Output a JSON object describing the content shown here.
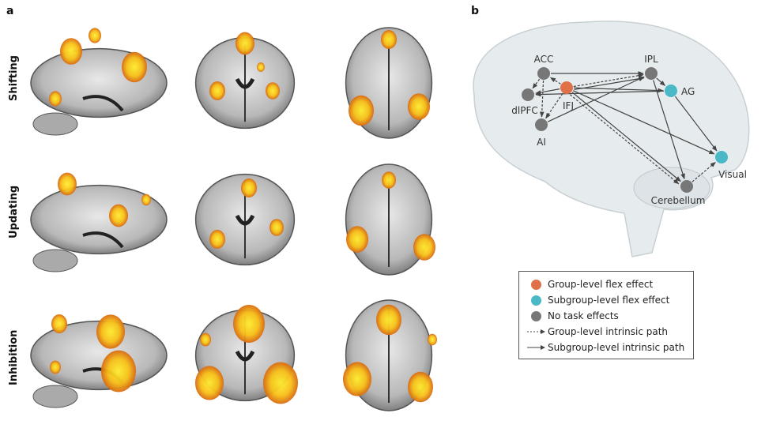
{
  "panels": {
    "a": "a",
    "b": "b"
  },
  "rows": [
    "Shifting",
    "Updating",
    "Inhibition"
  ],
  "colors": {
    "group": "#e07048",
    "subgroup": "#4bb8c8",
    "none": "#777777",
    "activation_high": "#ffe828",
    "activation_low": "#e07a10"
  },
  "diagram": {
    "nodes": [
      {
        "id": "ACC",
        "label": "ACC",
        "type": "none"
      },
      {
        "id": "IFJ",
        "label": "IFJ",
        "type": "group"
      },
      {
        "id": "dlPFC",
        "label": "dlPFC",
        "type": "none"
      },
      {
        "id": "AI",
        "label": "AI",
        "type": "none"
      },
      {
        "id": "IPL",
        "label": "IPL",
        "type": "none"
      },
      {
        "id": "AG",
        "label": "AG",
        "type": "subgroup"
      },
      {
        "id": "Visual",
        "label": "Visual",
        "type": "subgroup"
      },
      {
        "id": "Cerebellum",
        "label": "Cerebellum",
        "type": "none"
      }
    ],
    "edges": [
      {
        "from": "ACC",
        "to": "IPL",
        "style": "solid"
      },
      {
        "from": "ACC",
        "to": "dlPFC",
        "style": "dashed"
      },
      {
        "from": "ACC",
        "to": "AI",
        "style": "dashed"
      },
      {
        "from": "IFJ",
        "to": "ACC",
        "style": "dashed"
      },
      {
        "from": "IFJ",
        "to": "IPL",
        "style": "dashed"
      },
      {
        "from": "IFJ",
        "to": "IPL",
        "style": "solid"
      },
      {
        "from": "IFJ",
        "to": "dlPFC",
        "style": "solid"
      },
      {
        "from": "IFJ",
        "to": "AG",
        "style": "solid"
      },
      {
        "from": "AG",
        "to": "dlPFC",
        "style": "solid"
      },
      {
        "from": "IFJ",
        "to": "AI",
        "style": "dashed"
      },
      {
        "from": "AI",
        "to": "IPL",
        "style": "solid"
      },
      {
        "from": "IFJ",
        "to": "Cerebellum",
        "style": "solid"
      },
      {
        "from": "IFJ",
        "to": "Cerebellum",
        "style": "dashed"
      },
      {
        "from": "IFJ",
        "to": "Visual",
        "style": "solid"
      },
      {
        "from": "IPL",
        "to": "AG",
        "style": "solid"
      },
      {
        "from": "IPL",
        "to": "Cerebellum",
        "style": "solid"
      },
      {
        "from": "AG",
        "to": "Visual",
        "style": "solid"
      },
      {
        "from": "Cerebellum",
        "to": "Visual",
        "style": "dashed"
      }
    ]
  },
  "legend": {
    "group": "Group-level flex effect",
    "subgroup": "Subgroup-level flex effect",
    "none": "No task effects",
    "dashed": "Group-level intrinsic path",
    "solid": "Subgroup-level intrinsic path"
  }
}
